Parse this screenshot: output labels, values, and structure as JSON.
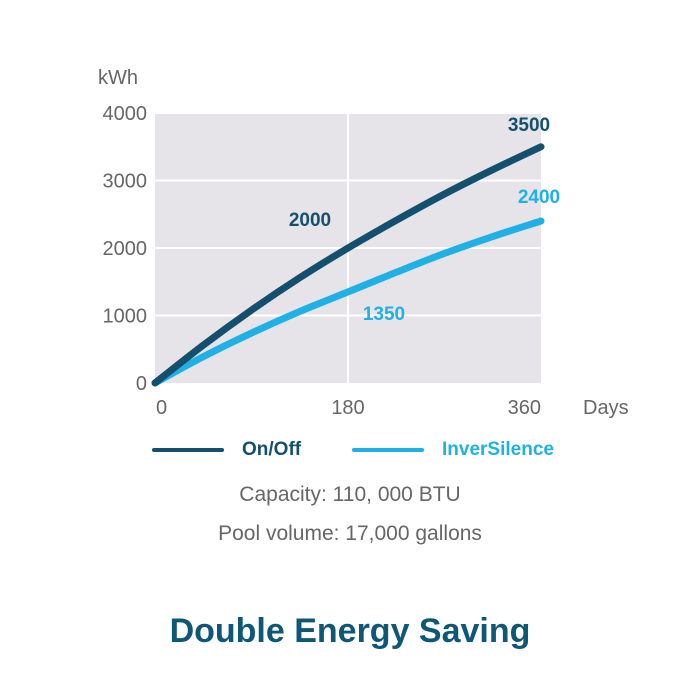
{
  "chart_data": {
    "type": "line",
    "xlabel": "Days",
    "ylabel": "kWh",
    "xlim": [
      0,
      360
    ],
    "ylim": [
      0,
      4000
    ],
    "xticks": [
      "0",
      "180",
      "360"
    ],
    "yticks": [
      "0",
      "1000",
      "2000",
      "3000",
      "4000"
    ],
    "grid": true,
    "legend_position": "bottom",
    "series": [
      {
        "name": "On/Off",
        "color": "#14506e",
        "x": [
          0,
          45,
          90,
          135,
          180,
          225,
          270,
          315,
          360
        ],
        "y": [
          0,
          560,
          1080,
          1560,
          2000,
          2410,
          2800,
          3160,
          3500
        ],
        "labels": [
          {
            "x": 180,
            "text": "2000"
          },
          {
            "x": 360,
            "text": "3500"
          }
        ]
      },
      {
        "name": "InverSilence",
        "color": "#1fb1e6",
        "x": [
          0,
          45,
          90,
          135,
          180,
          225,
          270,
          315,
          360
        ],
        "y": [
          0,
          390,
          740,
          1060,
          1350,
          1640,
          1920,
          2170,
          2400
        ],
        "labels": [
          {
            "x": 180,
            "text": "1350"
          },
          {
            "x": 360,
            "text": "2400"
          }
        ]
      }
    ]
  },
  "notes": {
    "capacity": "Capacity: 110, 000 BTU",
    "pool_volume": "Pool volume: 17,000 gallons"
  },
  "title": "Double Energy Saving"
}
